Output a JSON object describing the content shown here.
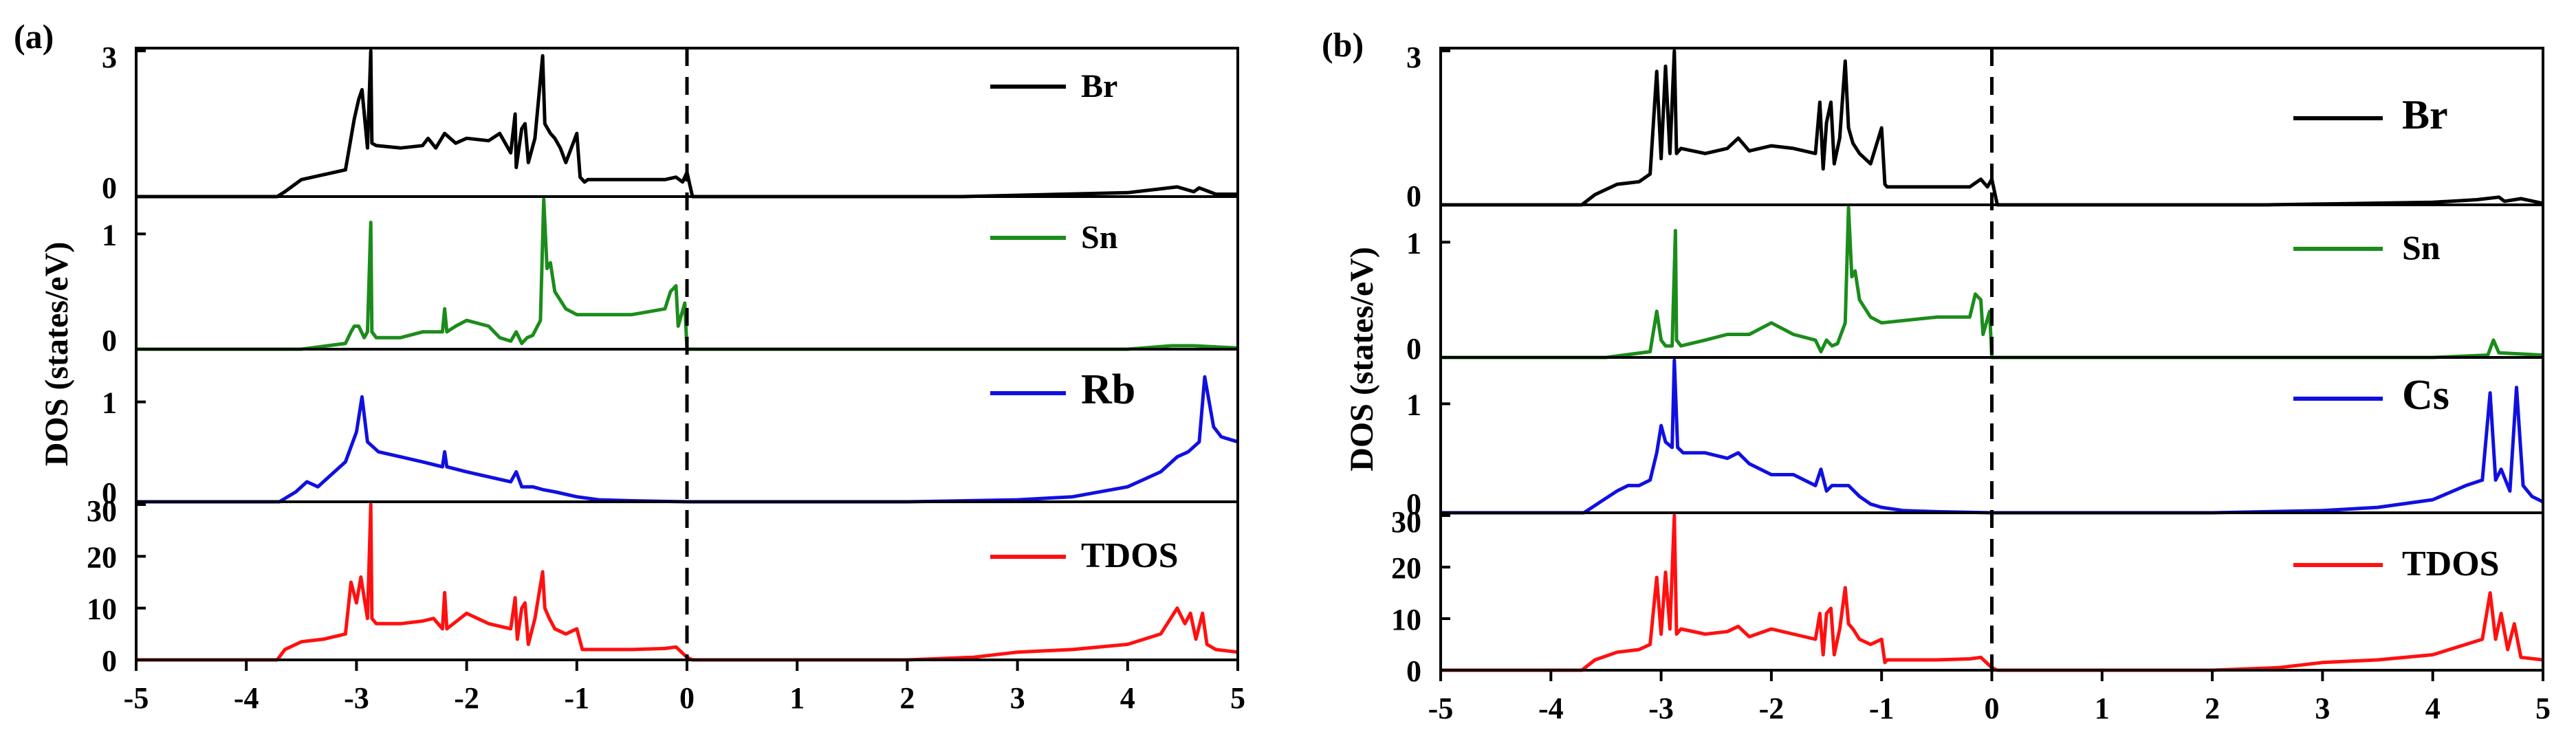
{
  "figure_labels": [
    "(a)",
    "(b)"
  ],
  "ylabel": "DOS (states/eV)",
  "x_ticks": [
    "-5",
    "-4",
    "-3",
    "-2",
    "-1",
    "0",
    "1",
    "2",
    "3",
    "4",
    "5"
  ],
  "colors": {
    "Br": "#000000",
    "Sn": "#1b8c1b",
    "A": "#1010e0",
    "TDOS": "#ff1010",
    "axis": "#000000"
  },
  "chart_data": [
    {
      "type": "line",
      "title": "(a)",
      "xlabel": "",
      "ylabel": "DOS (states/eV)",
      "xlim": [
        -5,
        5
      ],
      "fermi_level": 0,
      "panels": [
        {
          "name": "Br",
          "legend": "Br",
          "color": "#000000",
          "ylim": [
            0,
            3
          ],
          "y_tick_labels": [
            "0",
            "3"
          ],
          "y_tick_values": [
            0,
            3
          ],
          "x": [
            -5,
            -3.72,
            -3.65,
            -3.5,
            -3.3,
            -3.1,
            -3.02,
            -2.98,
            -2.95,
            -2.9,
            -2.87,
            -2.86,
            -2.82,
            -2.6,
            -2.4,
            -2.35,
            -2.28,
            -2.2,
            -2.1,
            -2.0,
            -1.8,
            -1.7,
            -1.6,
            -1.56,
            -1.55,
            -1.5,
            -1.47,
            -1.44,
            -1.38,
            -1.31,
            -1.29,
            -1.24,
            -1.2,
            -1.15,
            -1.1,
            -1.0,
            -0.97,
            -0.93,
            -0.9,
            -0.5,
            -0.2,
            -0.1,
            -0.04,
            0.0,
            0.05,
            2.5,
            4.0,
            4.45,
            4.6,
            4.65,
            4.8,
            5.0
          ],
          "values": [
            0,
            0,
            0.1,
            0.35,
            0.45,
            0.55,
            1.6,
            2.0,
            2.2,
            1.0,
            3.0,
            1.1,
            1.05,
            1.0,
            1.05,
            1.2,
            1.0,
            1.3,
            1.1,
            1.2,
            1.15,
            1.3,
            0.9,
            1.7,
            0.6,
            1.4,
            1.5,
            0.7,
            1.2,
            2.9,
            1.5,
            1.3,
            1.2,
            1.0,
            0.7,
            1.3,
            0.4,
            0.3,
            0.35,
            0.35,
            0.35,
            0.4,
            0.3,
            0.5,
            0.0,
            0.0,
            0.08,
            0.2,
            0.1,
            0.18,
            0.05,
            0.05
          ]
        },
        {
          "name": "Sn",
          "legend": "Sn",
          "color": "#1b8c1b",
          "ylim": [
            0,
            1.3
          ],
          "y_tick_labels": [
            "0",
            "1"
          ],
          "y_tick_values": [
            0,
            1
          ],
          "x": [
            -5,
            -3.5,
            -3.1,
            -3.05,
            -3.02,
            -2.98,
            -2.93,
            -2.9,
            -2.87,
            -2.86,
            -2.82,
            -2.6,
            -2.4,
            -2.22,
            -2.2,
            -2.18,
            -2.1,
            -2.0,
            -1.8,
            -1.7,
            -1.6,
            -1.55,
            -1.5,
            -1.45,
            -1.4,
            -1.33,
            -1.3,
            -1.27,
            -1.24,
            -1.2,
            -1.1,
            -1.0,
            -0.5,
            -0.2,
            -0.15,
            -0.1,
            -0.08,
            -0.02,
            0.0,
            0.05,
            4.0,
            4.4,
            4.6,
            5.0
          ],
          "values": [
            0,
            0.0,
            0.05,
            0.15,
            0.2,
            0.2,
            0.1,
            0.15,
            1.1,
            0.15,
            0.1,
            0.1,
            0.15,
            0.15,
            0.35,
            0.15,
            0.2,
            0.25,
            0.2,
            0.1,
            0.07,
            0.15,
            0.05,
            0.1,
            0.12,
            0.25,
            1.3,
            0.7,
            0.75,
            0.5,
            0.35,
            0.3,
            0.3,
            0.35,
            0.5,
            0.55,
            0.2,
            0.4,
            0.0,
            0.0,
            0.0,
            0.03,
            0.03,
            0.01
          ]
        },
        {
          "name": "Rb",
          "legend": "Rb",
          "color": "#1010e0",
          "ylim": [
            0,
            1.5
          ],
          "y_tick_labels": [
            "0",
            "1"
          ],
          "y_tick_values": [
            0,
            1
          ],
          "x": [
            -5,
            -3.7,
            -3.55,
            -3.45,
            -3.35,
            -3.3,
            -3.1,
            -3.0,
            -2.95,
            -2.9,
            -2.8,
            -2.6,
            -2.4,
            -2.22,
            -2.2,
            -2.18,
            -2.0,
            -1.8,
            -1.6,
            -1.55,
            -1.5,
            -1.4,
            -1.3,
            -1.2,
            -1.0,
            -0.8,
            -0.5,
            0,
            2.0,
            3.0,
            3.5,
            4.0,
            4.3,
            4.45,
            4.55,
            4.65,
            4.7,
            4.78,
            4.85,
            5.0
          ],
          "values": [
            0,
            0,
            0.1,
            0.2,
            0.15,
            0.2,
            0.4,
            0.7,
            1.05,
            0.6,
            0.5,
            0.45,
            0.4,
            0.35,
            0.5,
            0.35,
            0.3,
            0.25,
            0.2,
            0.3,
            0.15,
            0.15,
            0.12,
            0.1,
            0.05,
            0.02,
            0.01,
            0,
            0,
            0.02,
            0.05,
            0.15,
            0.3,
            0.45,
            0.5,
            0.6,
            1.25,
            0.75,
            0.65,
            0.6
          ]
        },
        {
          "name": "TDOS",
          "legend": "TDOS",
          "color": "#ff1010",
          "ylim": [
            0,
            30
          ],
          "y_tick_labels": [
            "0",
            "10",
            "20",
            "30"
          ],
          "y_tick_values": [
            0,
            10,
            20,
            30
          ],
          "x": [
            -5,
            -3.72,
            -3.65,
            -3.5,
            -3.3,
            -3.1,
            -3.05,
            -3.0,
            -2.96,
            -2.9,
            -2.87,
            -2.86,
            -2.82,
            -2.6,
            -2.4,
            -2.3,
            -2.22,
            -2.2,
            -2.18,
            -2.0,
            -1.8,
            -1.6,
            -1.56,
            -1.54,
            -1.5,
            -1.47,
            -1.44,
            -1.38,
            -1.31,
            -1.29,
            -1.25,
            -1.2,
            -1.1,
            -1.0,
            -0.95,
            -0.9,
            -0.5,
            -0.2,
            -0.1,
            0.0,
            0.05,
            2.0,
            2.6,
            3.0,
            3.5,
            4.0,
            4.3,
            4.45,
            4.52,
            4.57,
            4.62,
            4.68,
            4.72,
            4.8,
            5.0
          ],
          "values": [
            0,
            0,
            2,
            3.5,
            4,
            5,
            15,
            11,
            16,
            8,
            30,
            8,
            7,
            7,
            7.5,
            8,
            6,
            13,
            6,
            9,
            7,
            6,
            12,
            4,
            10,
            11,
            3,
            8,
            17,
            10,
            8,
            6,
            5,
            6,
            2,
            2,
            2,
            2.2,
            2.5,
            0.5,
            0,
            0,
            0.5,
            1.5,
            2,
            3,
            5,
            10,
            7,
            9,
            4,
            9,
            3,
            2,
            1.5
          ]
        }
      ]
    },
    {
      "type": "line",
      "title": "(b)",
      "xlabel": "",
      "ylabel": "DOS (states/eV)",
      "xlim": [
        -5,
        5
      ],
      "fermi_level": 0,
      "panels": [
        {
          "name": "Br",
          "legend": "Br",
          "color": "#000000",
          "ylim": [
            0,
            3
          ],
          "y_tick_labels": [
            "0",
            "3"
          ],
          "y_tick_values": [
            0,
            3
          ],
          "x": [
            -5,
            -3.72,
            -3.6,
            -3.4,
            -3.2,
            -3.1,
            -3.04,
            -3.0,
            -2.96,
            -2.92,
            -2.88,
            -2.86,
            -2.82,
            -2.6,
            -2.4,
            -2.3,
            -2.2,
            -2.0,
            -1.8,
            -1.6,
            -1.56,
            -1.53,
            -1.5,
            -1.46,
            -1.43,
            -1.38,
            -1.33,
            -1.3,
            -1.26,
            -1.2,
            -1.1,
            -1.0,
            -0.97,
            -0.95,
            -0.5,
            -0.2,
            -0.1,
            -0.04,
            0.0,
            0.05,
            2.5,
            4.0,
            4.4,
            4.6,
            4.65,
            4.8,
            5.0
          ],
          "values": [
            0,
            0,
            0.2,
            0.4,
            0.45,
            0.6,
            2.6,
            0.9,
            2.7,
            1.0,
            3.0,
            1.0,
            1.1,
            1.0,
            1.1,
            1.3,
            1.05,
            1.15,
            1.1,
            1.0,
            2.0,
            0.7,
            1.6,
            2.0,
            0.8,
            1.3,
            2.8,
            1.5,
            1.2,
            1.0,
            0.8,
            1.5,
            0.4,
            0.35,
            0.35,
            0.35,
            0.5,
            0.35,
            0.5,
            0.0,
            0.0,
            0.05,
            0.1,
            0.15,
            0.07,
            0.12,
            0.03
          ]
        },
        {
          "name": "Sn",
          "legend": "Sn",
          "color": "#1b8c1b",
          "ylim": [
            0,
            1.3
          ],
          "y_tick_labels": [
            "0",
            "1"
          ],
          "y_tick_values": [
            0,
            1
          ],
          "x": [
            -5,
            -3.5,
            -3.1,
            -3.04,
            -3.0,
            -2.96,
            -2.9,
            -2.87,
            -2.86,
            -2.82,
            -2.6,
            -2.4,
            -2.2,
            -2.0,
            -1.8,
            -1.6,
            -1.55,
            -1.5,
            -1.45,
            -1.4,
            -1.33,
            -1.3,
            -1.27,
            -1.24,
            -1.2,
            -1.1,
            -1.0,
            -0.5,
            -0.2,
            -0.15,
            -0.1,
            -0.08,
            -0.02,
            0.0,
            0.05,
            4.0,
            4.5,
            4.55,
            4.6,
            5.0
          ],
          "values": [
            0,
            0.0,
            0.05,
            0.4,
            0.15,
            0.1,
            0.1,
            1.1,
            0.15,
            0.1,
            0.15,
            0.2,
            0.2,
            0.3,
            0.2,
            0.15,
            0.05,
            0.15,
            0.1,
            0.12,
            0.3,
            1.3,
            0.7,
            0.75,
            0.5,
            0.35,
            0.3,
            0.35,
            0.35,
            0.55,
            0.5,
            0.2,
            0.4,
            0.0,
            0.0,
            0.0,
            0.02,
            0.15,
            0.04,
            0.02
          ]
        },
        {
          "name": "Cs",
          "legend": "Cs",
          "color": "#1010e0",
          "ylim": [
            0,
            1.4
          ],
          "y_tick_labels": [
            "0",
            "1"
          ],
          "y_tick_values": [
            0,
            1
          ],
          "x": [
            -5,
            -3.7,
            -3.55,
            -3.4,
            -3.3,
            -3.2,
            -3.1,
            -3.04,
            -3.0,
            -2.96,
            -2.9,
            -2.88,
            -2.85,
            -2.8,
            -2.6,
            -2.4,
            -2.3,
            -2.2,
            -2.0,
            -1.8,
            -1.6,
            -1.55,
            -1.5,
            -1.45,
            -1.3,
            -1.2,
            -1.1,
            -1.0,
            -0.8,
            -0.5,
            0,
            2.0,
            3.0,
            3.5,
            4.0,
            4.3,
            4.45,
            4.52,
            4.57,
            4.62,
            4.7,
            4.76,
            4.82,
            4.9,
            5.0
          ],
          "values": [
            0,
            0,
            0.1,
            0.2,
            0.25,
            0.25,
            0.3,
            0.55,
            0.8,
            0.65,
            0.6,
            1.4,
            0.6,
            0.55,
            0.55,
            0.5,
            0.55,
            0.45,
            0.35,
            0.35,
            0.25,
            0.4,
            0.2,
            0.25,
            0.25,
            0.15,
            0.08,
            0.05,
            0.02,
            0.01,
            0,
            0,
            0.02,
            0.05,
            0.12,
            0.25,
            0.3,
            1.1,
            0.3,
            0.4,
            0.2,
            1.15,
            0.25,
            0.15,
            0.1
          ]
        },
        {
          "name": "TDOS",
          "legend": "TDOS",
          "color": "#ff1010",
          "ylim": [
            0,
            30
          ],
          "y_tick_labels": [
            "0",
            "10",
            "20",
            "30"
          ],
          "y_tick_values": [
            0,
            10,
            20,
            30
          ],
          "x": [
            -5,
            -3.72,
            -3.6,
            -3.4,
            -3.2,
            -3.1,
            -3.04,
            -3.0,
            -2.96,
            -2.92,
            -2.88,
            -2.86,
            -2.82,
            -2.6,
            -2.4,
            -2.3,
            -2.2,
            -2.0,
            -1.8,
            -1.6,
            -1.56,
            -1.53,
            -1.5,
            -1.46,
            -1.43,
            -1.38,
            -1.33,
            -1.3,
            -1.26,
            -1.2,
            -1.1,
            -1.0,
            -0.97,
            -0.95,
            -0.5,
            -0.2,
            -0.1,
            0.0,
            0.05,
            2.0,
            2.6,
            3.0,
            3.5,
            4.0,
            4.3,
            4.45,
            4.52,
            4.57,
            4.62,
            4.68,
            4.74,
            4.8,
            5.0
          ],
          "values": [
            0,
            0,
            2,
            3.5,
            4,
            5,
            18,
            7,
            19,
            8,
            30,
            7,
            8,
            7,
            7.5,
            8.5,
            6.5,
            8,
            7,
            6,
            11,
            3,
            11,
            12,
            3,
            8,
            16,
            9,
            8,
            6,
            5,
            6,
            1.5,
            2,
            2,
            2.2,
            2.5,
            0.5,
            0,
            0,
            0.5,
            1.5,
            2,
            3,
            5,
            6,
            15,
            6,
            11,
            4,
            9,
            2.5,
            2
          ]
        }
      ]
    }
  ]
}
